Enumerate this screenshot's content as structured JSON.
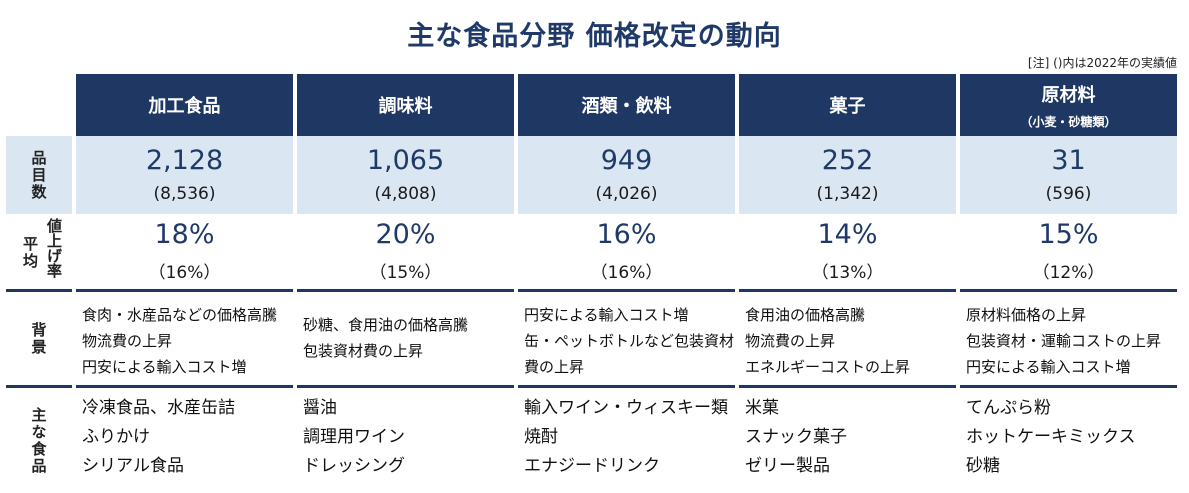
{
  "title": "主な食品分野  価格改定の動向",
  "note": "[注] ()内は2022年の実績値",
  "columns": [
    {
      "label": "加工食品",
      "sub": ""
    },
    {
      "label": "調味料",
      "sub": ""
    },
    {
      "label": "酒類・飲料",
      "sub": ""
    },
    {
      "label": "菓子",
      "sub": ""
    },
    {
      "label": "原材料",
      "sub": "（小麦・砂糖類）"
    }
  ],
  "rows": {
    "items_label": "品目数",
    "avg_label_a": "平均",
    "avg_label_b": "値上げ率",
    "background_label": "背景",
    "foods_label": "主な食品"
  },
  "items": [
    {
      "value": "2,128",
      "prev": "(8,536)"
    },
    {
      "value": "1,065",
      "prev": "(4,808)"
    },
    {
      "value": "949",
      "prev": "(4,026)"
    },
    {
      "value": "252",
      "prev": "(1,342)"
    },
    {
      "value": "31",
      "prev": "(596)"
    }
  ],
  "avg": [
    {
      "value": "18%",
      "prev": "（16%）"
    },
    {
      "value": "20%",
      "prev": "（15%）"
    },
    {
      "value": "16%",
      "prev": "（16%）"
    },
    {
      "value": "14%",
      "prev": "（13%）"
    },
    {
      "value": "15%",
      "prev": "（12%）"
    }
  ],
  "background": [
    [
      "食肉・水産品などの価格高騰",
      "物流費の上昇",
      "円安による輸入コスト増"
    ],
    [
      "砂糖、食用油の価格高騰",
      "包装資材費の上昇"
    ],
    [
      "円安による輸入コスト増",
      "缶・ペットボトルなど包装資材",
      "費の上昇"
    ],
    [
      "食用油の価格高騰",
      "物流費の上昇",
      "エネルギーコストの上昇"
    ],
    [
      "原材料価格の上昇",
      "包装資材・運輸コストの上昇",
      "円安による輸入コスト増"
    ]
  ],
  "foods": [
    [
      "冷凍食品、水産缶詰",
      "ふりかけ",
      "シリアル食品"
    ],
    [
      "醤油",
      "調理用ワイン",
      "ドレッシング"
    ],
    [
      "輸入ワイン・ウィスキー類",
      "焼酎",
      "エナジードリンク"
    ],
    [
      "米菓",
      "スナック菓子",
      "ゼリー製品"
    ],
    [
      "てんぷら粉",
      "ホットケーキミックス",
      "砂糖"
    ]
  ],
  "colors": {
    "header": "#1f3763",
    "accent_text": "#1f3a68",
    "band": "#dbe6f3"
  }
}
